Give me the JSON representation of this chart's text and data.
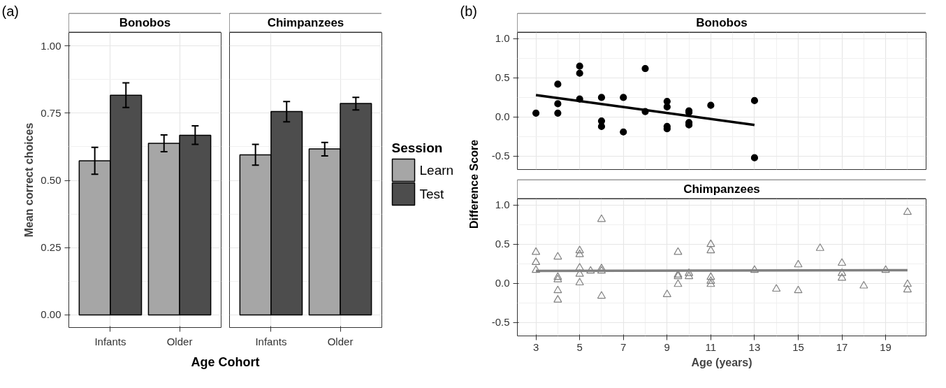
{
  "chart_data": [
    {
      "type": "bar",
      "title": "Bonobos",
      "ylabel": "Mean correct choices",
      "xlabel": "Age Cohort",
      "annotations": [
        "(a)"
      ],
      "categories": [
        "Infants",
        "Older"
      ],
      "ylim": [
        -0.047,
        1.05
      ],
      "yticks": [
        {
          "value": 0,
          "label": "0.00"
        },
        {
          "value": 0.25,
          "label": "0.25"
        },
        {
          "value": 0.5,
          "label": "0.50"
        },
        {
          "value": 0.75,
          "label": "0.75"
        },
        {
          "value": 1,
          "label": "1.00"
        }
      ],
      "grid": true,
      "tick_labels": true,
      "series": [
        {
          "color": "#a6a6a6",
          "values": [
            0.573,
            0.638
          ],
          "errors": [
            [
              0.523,
              0.623
            ],
            [
              0.607,
              0.669
            ]
          ]
        },
        {
          "color": "#4d4d4d",
          "values": [
            0.817,
            0.668
          ],
          "errors": [
            [
              0.771,
              0.863
            ],
            [
              0.634,
              0.703
            ]
          ]
        }
      ]
    },
    {
      "type": "bar",
      "title": "Chimpanzees",
      "legend_title": "Session",
      "legend": "right",
      "categories": [
        "Infants",
        "Older"
      ],
      "ylim": [
        -0.047,
        1.05
      ],
      "yticks": [
        0,
        0.25,
        0.5,
        0.75,
        1
      ],
      "grid": true,
      "tick_labels": "x",
      "series": [
        {
          "name": "Learn",
          "color": "#a6a6a6",
          "values": [
            0.595,
            0.617
          ],
          "errors": [
            [
              0.557,
              0.634
            ],
            [
              0.591,
              0.641
            ]
          ]
        },
        {
          "name": "Test",
          "color": "#4d4d4d",
          "values": [
            0.756,
            0.786
          ],
          "errors": [
            [
              0.718,
              0.793
            ],
            [
              0.762,
              0.809
            ]
          ]
        }
      ]
    },
    {
      "type": "scatter",
      "title": "Bonobos",
      "ylabel": "Difference Score",
      "annotations": [
        "(b)"
      ],
      "xlim": [
        2.15,
        20.85
      ],
      "xticks": [
        3,
        5,
        7,
        9,
        11,
        13,
        15,
        17,
        19
      ],
      "ylim": [
        -0.67,
        1.08
      ],
      "yticks": [
        {
          "value": -0.5,
          "label": "-0.5"
        },
        {
          "value": 0,
          "label": "0.0"
        },
        {
          "value": 0.5,
          "label": "0.5"
        },
        {
          "value": 1,
          "label": "1.0"
        }
      ],
      "grid": true,
      "tick_labels": "y",
      "series": [
        {
          "marker": "circle",
          "color": "#000000",
          "x": [
            3,
            4,
            4,
            4,
            5,
            5,
            5,
            6,
            6,
            6,
            7,
            7,
            8,
            8,
            9,
            9,
            9,
            9,
            10,
            10,
            10,
            10,
            11,
            13,
            13
          ],
          "values": [
            0.05,
            0.42,
            0.17,
            0.05,
            0.65,
            0.56,
            0.23,
            0.25,
            -0.05,
            -0.12,
            0.25,
            -0.19,
            0.62,
            0.07,
            0.2,
            0.13,
            -0.12,
            -0.15,
            0.08,
            0.06,
            -0.07,
            -0.1,
            0.15,
            0.21,
            -0.52
          ]
        },
        {
          "type": "line",
          "color": "#000000",
          "x": [
            3,
            13
          ],
          "values": [
            0.28,
            -0.1
          ]
        }
      ]
    },
    {
      "type": "scatter",
      "title": "Chimpanzees",
      "xlabel": "Age (years)",
      "xlim": [
        2.15,
        20.85
      ],
      "xticks": [
        3,
        5,
        7,
        9,
        11,
        13,
        15,
        17,
        19
      ],
      "ylim": [
        -0.67,
        1.08
      ],
      "yticks": [
        {
          "value": -0.5,
          "label": "-0.5"
        },
        {
          "value": 0,
          "label": "0.0"
        },
        {
          "value": 0.5,
          "label": "0.5"
        },
        {
          "value": 1,
          "label": "1.0"
        }
      ],
      "grid": true,
      "series": [
        {
          "marker": "triangle",
          "color": "#808080",
          "x": [
            3,
            3,
            3,
            4,
            4,
            4,
            4,
            4,
            5,
            5,
            5,
            5,
            5,
            5.5,
            6,
            6,
            6,
            6,
            9,
            9.5,
            9.5,
            9.5,
            9.5,
            10,
            10,
            11,
            11,
            11,
            11,
            11,
            13,
            14,
            15,
            15,
            16,
            17,
            17,
            17,
            18,
            19,
            20,
            20,
            20
          ],
          "values": [
            0.4,
            0.27,
            0.17,
            0.34,
            0.08,
            0.05,
            -0.09,
            -0.21,
            0.42,
            0.37,
            0.2,
            0.12,
            0.01,
            0.16,
            0.82,
            0.19,
            0.16,
            -0.16,
            -0.14,
            0.4,
            0.11,
            0.09,
            -0.01,
            0.13,
            0.09,
            0.5,
            0.42,
            0.08,
            0.03,
            -0.01,
            0.17,
            -0.07,
            0.24,
            -0.09,
            0.45,
            0.26,
            0.13,
            0.07,
            -0.03,
            0.17,
            0.91,
            -0.01,
            -0.08
          ]
        },
        {
          "type": "line",
          "color": "#808080",
          "x": [
            3,
            20
          ],
          "values": [
            0.16,
            0.17
          ]
        }
      ]
    }
  ]
}
